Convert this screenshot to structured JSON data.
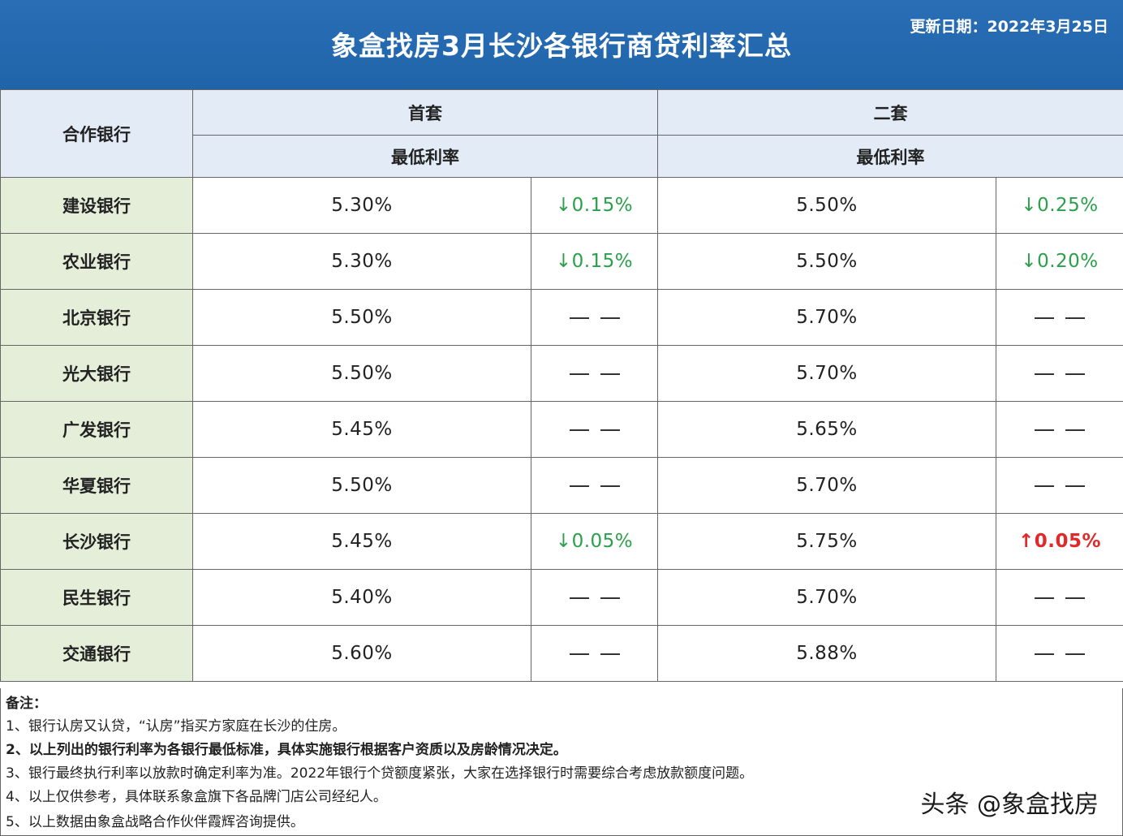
{
  "header": {
    "title": "象盒找房3月长沙各银行商贷利率汇总",
    "update_date": "更新日期：2022年3月25日"
  },
  "table": {
    "col_bank": "合作银行",
    "col_first": "首套",
    "col_second": "二套",
    "sub_first": "最低利率",
    "sub_second": "最低利率",
    "rows": [
      {
        "bank": "建设银行",
        "first_rate": "5.30%",
        "first_change": "↓0.15%",
        "second_rate": "5.50%",
        "second_change": "↓0.25%"
      },
      {
        "bank": "农业银行",
        "first_rate": "5.30%",
        "first_change": "↓0.15%",
        "second_rate": "5.50%",
        "second_change": "↓0.20%"
      },
      {
        "bank": "北京银行",
        "first_rate": "5.50%",
        "first_change": "",
        "second_rate": "5.70%",
        "second_change": ""
      },
      {
        "bank": "光大银行",
        "first_rate": "5.50%",
        "first_change": "",
        "second_rate": "5.70%",
        "second_change": ""
      },
      {
        "bank": "广发银行",
        "first_rate": "5.45%",
        "first_change": "",
        "second_rate": "5.65%",
        "second_change": ""
      },
      {
        "bank": "华夏银行",
        "first_rate": "5.50%",
        "first_change": "",
        "second_rate": "5.70%",
        "second_change": ""
      },
      {
        "bank": "长沙银行",
        "first_rate": "5.45%",
        "first_change": "↓0.05%",
        "second_rate": "5.75%",
        "second_change": "↑0.05%"
      },
      {
        "bank": "民生银行",
        "first_rate": "5.40%",
        "first_change": "",
        "second_rate": "5.70%",
        "second_change": ""
      },
      {
        "bank": "交通银行",
        "first_rate": "5.60%",
        "first_change": "",
        "second_rate": "5.88%",
        "second_change": ""
      }
    ]
  },
  "notes": {
    "title": "备注：",
    "items": [
      "1、银行认房又认贷，“认房”指买方家庭在长沙的住房。",
      "2、以上列出的银行利率为各银行最低标准，具体实施银行根据客户资质以及房龄情况决定。",
      "3、银行最终执行利率以放款时确定利率为准。2022年银行个贷额度紧张，大家在选择银行时需要综合考虑放款额度问题。",
      "4、以上仅供参考，具体联系象盒旗下各品牌门店公司经纪人。",
      "5、以上数据由象盒战略合作伙伴霞辉咨询提供。"
    ]
  },
  "watermark": "头条 @象盒找房",
  "colors": {
    "header_bg": "#1f63a9",
    "header_cell_bg": "#e3ecf6",
    "bank_cell_bg": "#e4eed9",
    "down": "#2aa04a",
    "up": "#e02a2a"
  }
}
